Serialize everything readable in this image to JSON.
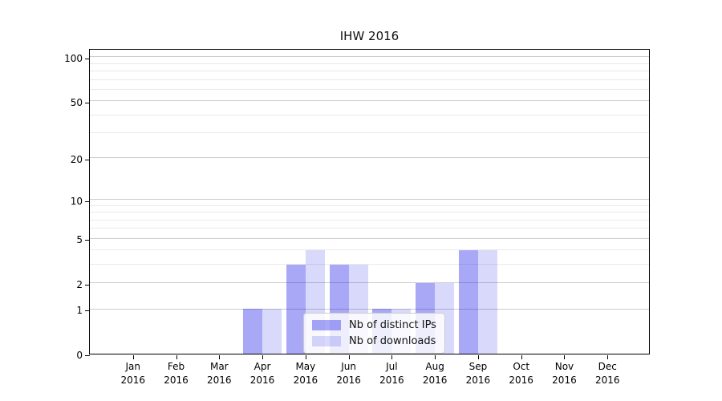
{
  "chart_data": {
    "type": "bar",
    "title": "IHW 2016",
    "categories": [
      "Jan 2016",
      "Feb 2016",
      "Mar 2016",
      "Apr 2016",
      "May 2016",
      "Jun 2016",
      "Jul 2016",
      "Aug 2016",
      "Sep 2016",
      "Oct 2016",
      "Nov 2016",
      "Dec 2016"
    ],
    "series": [
      {
        "name": "Nb of distinct IPs",
        "color": "rgba(0,0,230,0.34)",
        "values": [
          0,
          0,
          0,
          1,
          3,
          3,
          1,
          2,
          4,
          0,
          0,
          0
        ]
      },
      {
        "name": "Nb of downloads",
        "color": "rgba(0,0,230,0.15)",
        "values": [
          0,
          0,
          0,
          1,
          4,
          3,
          1,
          2,
          4,
          0,
          0,
          0
        ]
      }
    ],
    "xlabel": "",
    "ylabel": "",
    "y_scale": "log1p",
    "y_major_ticks": [
      0,
      1,
      2,
      5,
      10,
      20,
      50,
      100
    ],
    "y_minor_gridlines": [
      3,
      4,
      6,
      7,
      8,
      9,
      30,
      40,
      60,
      70,
      80,
      90
    ],
    "ylim": [
      0,
      113.5
    ],
    "grid": true,
    "legend_position": "lower center",
    "legend_colors": {
      "ips_swatch": "rgba(0,0,230,0.34)",
      "downloads_swatch": "rgba(0,0,230,0.15)"
    }
  }
}
